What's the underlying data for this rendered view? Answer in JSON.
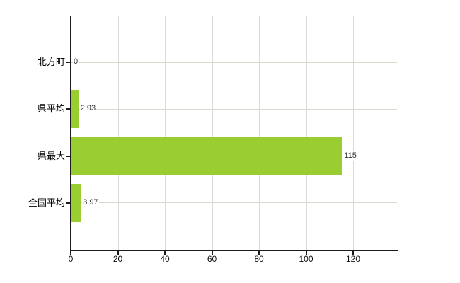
{
  "chart_data": {
    "type": "bar",
    "orientation": "horizontal",
    "title": "",
    "xlabel": "",
    "ylabel": "",
    "categories": [
      "北方町",
      "県平均",
      "県最大",
      "全国平均"
    ],
    "values": [
      0,
      2.93,
      115,
      3.97
    ],
    "value_labels": [
      "0",
      "2.93",
      "115",
      "3.97"
    ],
    "x_ticks": [
      0,
      20,
      40,
      60,
      80,
      100,
      120
    ],
    "x_tick_labels": [
      "0",
      "20",
      "40",
      "60",
      "80",
      "100",
      "120"
    ],
    "xlim": [
      0,
      138.7
    ],
    "grid": true,
    "gridlines": {
      "vertical": "at each x tick",
      "horizontal": "at each category"
    },
    "legend": "none",
    "colors": {
      "bar": "#9acd32",
      "axis": "#1c1c1c",
      "vertical_grid": "#dadada",
      "horizontal_grid": "#d3dccd",
      "top_border_dashed": "#c9c4ce",
      "value_label_text": "#333333",
      "tick_label_text": "#0d0d0d",
      "background": "#ffffff"
    }
  }
}
